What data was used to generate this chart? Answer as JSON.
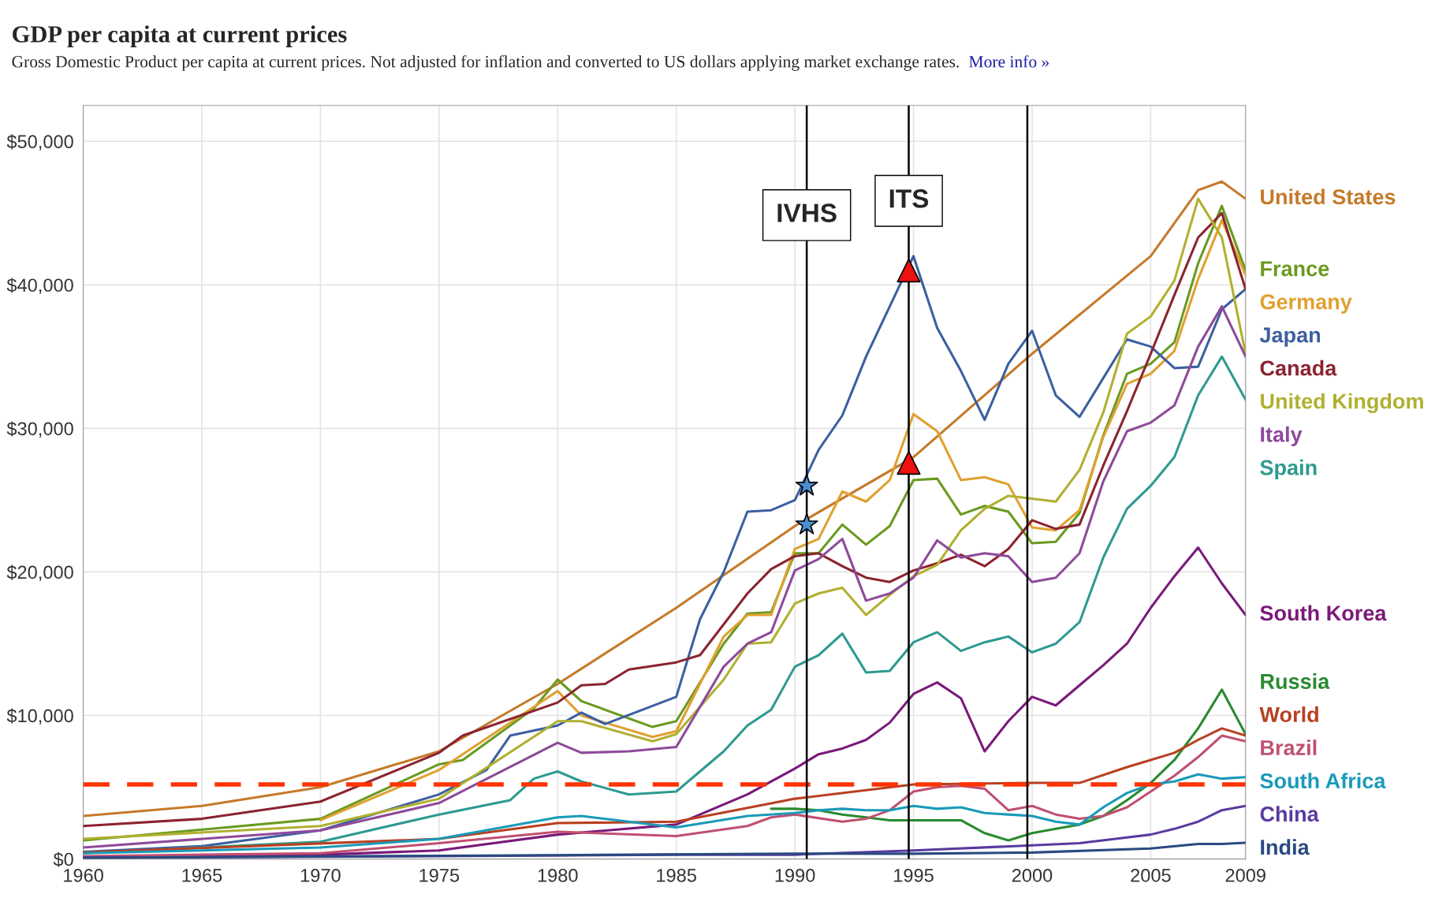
{
  "chart_data": {
    "type": "line",
    "title": "GDP per capita at current prices",
    "subtitle": "Gross Domestic Product per capita at current prices. Not adjusted for inflation and converted to US dollars applying market exchange rates.",
    "xlim": [
      1960,
      2009
    ],
    "xticks": [
      1960,
      1965,
      1970,
      1975,
      1980,
      1985,
      1990,
      1995,
      2000,
      2005,
      2009
    ],
    "ylim": [
      0,
      52500
    ],
    "yticks": [
      {
        "value": 0,
        "label": "$0"
      },
      {
        "value": 10000,
        "label": "$10,000"
      },
      {
        "value": 20000,
        "label": "$20,000"
      },
      {
        "value": 30000,
        "label": "$30,000"
      },
      {
        "value": 40000,
        "label": "$40,000"
      },
      {
        "value": 50000,
        "label": "$50,000"
      }
    ],
    "grid": true,
    "legend": "right",
    "line_style": "solid",
    "series": [
      {
        "name": "United States",
        "color": "#c57a2a",
        "x": [
          1960,
          1965,
          1970,
          1975,
          1980,
          1985,
          1990,
          1995,
          2000,
          2005,
          2007,
          2008,
          2009
        ],
        "values": [
          3000,
          3700,
          5000,
          7500,
          12200,
          17500,
          23200,
          28000,
          35200,
          42000,
          46600,
          47200,
          46000
        ]
      },
      {
        "name": "France",
        "color": "#6a9a1f",
        "x": [
          1960,
          1970,
          1975,
          1976,
          1979,
          1980,
          1981,
          1984,
          1985,
          1987,
          1988,
          1989,
          1990,
          1991,
          1992,
          1993,
          1994,
          1995,
          1996,
          1997,
          1998,
          1999,
          2000,
          2001,
          2002,
          2003,
          2004,
          2005,
          2006,
          2007,
          2008,
          2009
        ],
        "values": [
          1300,
          2800,
          6600,
          6900,
          10500,
          12500,
          11000,
          9200,
          9600,
          15000,
          17100,
          17200,
          21300,
          21300,
          23300,
          21900,
          23200,
          26400,
          26500,
          24000,
          24600,
          24200,
          22000,
          22100,
          24100,
          29500,
          33800,
          34500,
          36000,
          41500,
          45500,
          41000
        ]
      },
      {
        "name": "Germany",
        "color": "#e0a030",
        "x": [
          1970,
          1975,
          1980,
          1981,
          1984,
          1985,
          1987,
          1988,
          1989,
          1990,
          1991,
          1992,
          1993,
          1994,
          1995,
          1996,
          1997,
          1998,
          1999,
          2000,
          2001,
          2002,
          2003,
          2004,
          2005,
          2006,
          2007,
          2008,
          2009
        ],
        "values": [
          2700,
          6200,
          11700,
          10000,
          8500,
          8900,
          15500,
          17000,
          17000,
          21600,
          22300,
          25600,
          24900,
          26400,
          31000,
          29800,
          26400,
          26600,
          26100,
          23100,
          22900,
          24300,
          29400,
          33100,
          33800,
          35400,
          40400,
          44500,
          40700
        ]
      },
      {
        "name": "Japan",
        "color": "#3c5fa0",
        "x": [
          1960,
          1965,
          1970,
          1975,
          1977,
          1978,
          1980,
          1981,
          1982,
          1985,
          1986,
          1987,
          1988,
          1989,
          1990,
          1991,
          1992,
          1993,
          1994,
          1995,
          1996,
          1997,
          1998,
          1999,
          2000,
          2001,
          2002,
          2003,
          2004,
          2005,
          2006,
          2007,
          2008,
          2009
        ],
        "values": [
          500,
          900,
          2000,
          4500,
          6200,
          8600,
          9300,
          10200,
          9400,
          11300,
          16700,
          20000,
          24200,
          24300,
          25000,
          28500,
          30900,
          35000,
          38500,
          42000,
          37000,
          34000,
          30600,
          34500,
          36800,
          32300,
          30800,
          33500,
          36200,
          35700,
          34200,
          34300,
          38300,
          39700
        ]
      },
      {
        "name": "Canada",
        "color": "#8b2330",
        "x": [
          1960,
          1965,
          1970,
          1975,
          1976,
          1980,
          1981,
          1982,
          1983,
          1985,
          1986,
          1988,
          1989,
          1990,
          1991,
          1992,
          1993,
          1994,
          1995,
          1996,
          1997,
          1998,
          1999,
          2000,
          2001,
          2002,
          2003,
          2004,
          2005,
          2006,
          2007,
          2008,
          2009
        ],
        "values": [
          2300,
          2800,
          4000,
          7400,
          8600,
          10900,
          12100,
          12200,
          13200,
          13700,
          14200,
          18500,
          20200,
          21100,
          21300,
          20400,
          19600,
          19300,
          20100,
          20600,
          21200,
          20400,
          21600,
          23600,
          23000,
          23300,
          27400,
          31200,
          35200,
          39300,
          43300,
          45000,
          39700
        ]
      },
      {
        "name": "United Kingdom",
        "color": "#b0b030",
        "x": [
          1960,
          1970,
          1975,
          1980,
          1981,
          1984,
          1985,
          1987,
          1988,
          1989,
          1990,
          1991,
          1992,
          1993,
          1994,
          1995,
          1996,
          1997,
          1998,
          1999,
          2000,
          2001,
          2002,
          2003,
          2004,
          2005,
          2006,
          2007,
          2008,
          2009
        ],
        "values": [
          1400,
          2300,
          4200,
          9600,
          9600,
          8200,
          8700,
          12500,
          15000,
          15100,
          17800,
          18500,
          18900,
          17000,
          18400,
          19700,
          20500,
          22900,
          24400,
          25300,
          25100,
          24900,
          27100,
          31100,
          36600,
          37800,
          40300,
          46000,
          43300,
          35200
        ]
      },
      {
        "name": "Italy",
        "color": "#8e4a9a",
        "x": [
          1960,
          1970,
          1975,
          1980,
          1981,
          1983,
          1985,
          1987,
          1988,
          1989,
          1990,
          1991,
          1992,
          1993,
          1994,
          1995,
          1996,
          1997,
          1998,
          1999,
          2000,
          2001,
          2002,
          2003,
          2004,
          2005,
          2006,
          2007,
          2008,
          2009
        ],
        "values": [
          800,
          2000,
          3900,
          8100,
          7400,
          7500,
          7800,
          13400,
          15000,
          15800,
          20100,
          20900,
          22300,
          18000,
          18500,
          19600,
          22200,
          21000,
          21300,
          21100,
          19300,
          19600,
          21300,
          26300,
          29800,
          30400,
          31600,
          35700,
          38500,
          35000
        ]
      },
      {
        "name": "Spain",
        "color": "#2e9a90",
        "x": [
          1960,
          1970,
          1975,
          1978,
          1979,
          1980,
          1981,
          1983,
          1985,
          1987,
          1988,
          1989,
          1990,
          1991,
          1992,
          1993,
          1994,
          1995,
          1996,
          1997,
          1998,
          1999,
          2000,
          2001,
          2002,
          2003,
          2004,
          2005,
          2006,
          2007,
          2008,
          2009
        ],
        "values": [
          400,
          1200,
          3100,
          4100,
          5600,
          6100,
          5400,
          4500,
          4700,
          7500,
          9300,
          10400,
          13400,
          14200,
          15700,
          13000,
          13100,
          15100,
          15800,
          14500,
          15100,
          15500,
          14400,
          15000,
          16500,
          21000,
          24400,
          26000,
          28000,
          32300,
          35000,
          32000
        ]
      },
      {
        "name": "South Korea",
        "color": "#7a1a7a",
        "x": [
          1960,
          1970,
          1975,
          1980,
          1985,
          1988,
          1990,
          1991,
          1992,
          1993,
          1994,
          1995,
          1996,
          1997,
          1998,
          1999,
          2000,
          2001,
          2002,
          2003,
          2004,
          2005,
          2006,
          2007,
          2008,
          2009
        ],
        "values": [
          150,
          300,
          600,
          1700,
          2400,
          4500,
          6300,
          7300,
          7700,
          8300,
          9500,
          11500,
          12300,
          11200,
          7500,
          9600,
          11300,
          10700,
          12100,
          13500,
          15000,
          17500,
          19700,
          21700,
          19200,
          17000
        ]
      },
      {
        "name": "Russia",
        "color": "#2a8a30",
        "x": [
          1989,
          1990,
          1991,
          1992,
          1993,
          1994,
          1995,
          1996,
          1997,
          1998,
          1999,
          2000,
          2001,
          2002,
          2003,
          2004,
          2005,
          2006,
          2007,
          2008,
          2009
        ],
        "values": [
          3500,
          3500,
          3400,
          3100,
          2900,
          2700,
          2700,
          2700,
          2700,
          1800,
          1300,
          1800,
          2100,
          2400,
          3000,
          4100,
          5300,
          6900,
          9100,
          11800,
          8700
        ]
      },
      {
        "name": "World",
        "color": "#b84020",
        "x": [
          1960,
          1975,
          1980,
          1985,
          1990,
          1995,
          2000,
          2002,
          2004,
          2005,
          2006,
          2007,
          2008,
          2009
        ],
        "values": [
          450,
          1400,
          2500,
          2600,
          4200,
          5200,
          5300,
          5300,
          6400,
          6900,
          7400,
          8300,
          9100,
          8600
        ]
      },
      {
        "name": "Brazil",
        "color": "#c05070",
        "x": [
          1960,
          1970,
          1975,
          1980,
          1985,
          1988,
          1989,
          1990,
          1992,
          1993,
          1994,
          1995,
          1996,
          1997,
          1998,
          1999,
          2000,
          2001,
          2002,
          2003,
          2004,
          2005,
          2006,
          2007,
          2008,
          2009
        ],
        "values": [
          200,
          400,
          1100,
          1900,
          1600,
          2300,
          2900,
          3100,
          2600,
          2800,
          3400,
          4700,
          5000,
          5100,
          4900,
          3400,
          3700,
          3100,
          2800,
          3000,
          3600,
          4700,
          5800,
          7100,
          8600,
          8200
        ]
      },
      {
        "name": "South Africa",
        "color": "#1a9ab8",
        "x": [
          1960,
          1970,
          1975,
          1980,
          1981,
          1985,
          1988,
          1990,
          1991,
          1992,
          1993,
          1994,
          1995,
          1996,
          1997,
          1998,
          1999,
          2000,
          2001,
          2002,
          2003,
          2004,
          2005,
          2006,
          2007,
          2008,
          2009
        ],
        "values": [
          400,
          800,
          1400,
          2900,
          3000,
          2200,
          3000,
          3200,
          3400,
          3500,
          3400,
          3400,
          3700,
          3500,
          3600,
          3200,
          3100,
          3000,
          2600,
          2400,
          3600,
          4600,
          5200,
          5400,
          5900,
          5600,
          5700
        ]
      },
      {
        "name": "China",
        "color": "#5a3aa0",
        "x": [
          1960,
          1975,
          1985,
          1990,
          1995,
          2000,
          2002,
          2004,
          2005,
          2006,
          2007,
          2008,
          2009
        ],
        "values": [
          100,
          200,
          300,
          300,
          600,
          950,
          1100,
          1500,
          1700,
          2100,
          2600,
          3400,
          3700
        ]
      },
      {
        "name": "India",
        "color": "#2a4a80",
        "x": [
          1960,
          1980,
          1990,
          1995,
          2000,
          2005,
          2007,
          2008,
          2009
        ],
        "values": [
          80,
          270,
          380,
          370,
          450,
          730,
          1050,
          1050,
          1130
        ]
      },
      {
        "type": "scatter",
        "marker": "star",
        "color": "#4a90d0",
        "x": [
          1990.5,
          1990.5
        ],
        "values": [
          26000,
          23300
        ]
      },
      {
        "type": "scatter",
        "marker": "triangle",
        "color": "#ee1111",
        "x": [
          1994.8,
          1994.8
        ],
        "values": [
          41000,
          27600
        ]
      }
    ],
    "ref_lines": [
      {
        "axis": "y",
        "value": 5200,
        "color": "#ff3300",
        "line_style": "dashed"
      },
      {
        "axis": "x",
        "value": 1990.5,
        "color": "#000000",
        "line_style": "solid"
      },
      {
        "axis": "x",
        "value": 1994.8,
        "color": "#000000",
        "line_style": "solid"
      },
      {
        "axis": "x",
        "value": 1999.8,
        "color": "#000000",
        "line_style": "solid"
      }
    ],
    "annotations": [
      {
        "text": "IVHS",
        "x": 1990.5,
        "y": 44000
      },
      {
        "text": "ITS",
        "x": 1994.8,
        "y": 45000
      },
      "More info »"
    ]
  }
}
